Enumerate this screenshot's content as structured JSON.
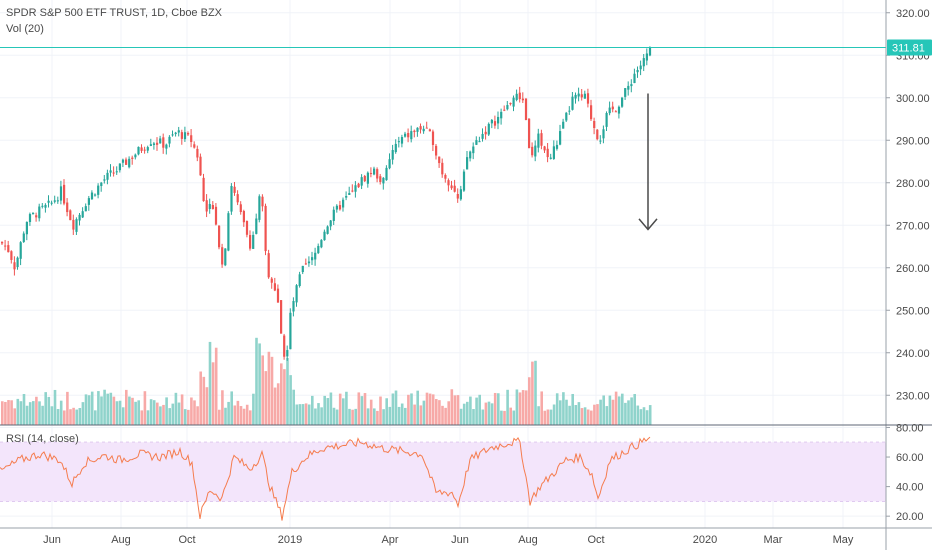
{
  "legend": {
    "symbol": "SPDR S&P 500 ETF TRUST, 1D, Cboe BZX",
    "volume": "Vol (20)",
    "rsi": "RSI (14, close)"
  },
  "colors": {
    "up": "#26a69a",
    "down": "#ef5350",
    "vol_up": "#8fd3cb",
    "vol_down": "#f7a9a7",
    "rsi_line": "#f57c4e",
    "rsi_band": "#f3e5fb",
    "last_price": "#26c6b8",
    "arrow": "#4a4a4a"
  },
  "chart_data": [
    {
      "type": "candlestick",
      "title": "SPDR S&P 500 ETF TRUST, 1D, Cboe BZX",
      "ylim": [
        223,
        323
      ],
      "y_ticks": [
        "230.00",
        "240.00",
        "250.00",
        "260.00",
        "270.00",
        "280.00",
        "290.00",
        "300.00",
        "310.00",
        "320.00"
      ],
      "last_price": "311.81",
      "x_labels": [
        "Jun",
        "Aug",
        "Oct",
        "2019",
        "Apr",
        "Jun",
        "Aug",
        "Oct",
        "2020",
        "Mar",
        "May"
      ],
      "close_anchors": [
        [
          0,
          266
        ],
        [
          8,
          264
        ],
        [
          14,
          260
        ],
        [
          25,
          271
        ],
        [
          36,
          273
        ],
        [
          50,
          275
        ],
        [
          60,
          278
        ],
        [
          72,
          270
        ],
        [
          86,
          276
        ],
        [
          104,
          281
        ],
        [
          116,
          283
        ],
        [
          130,
          286
        ],
        [
          150,
          290
        ],
        [
          164,
          289
        ],
        [
          176,
          292
        ],
        [
          190,
          290
        ],
        [
          197,
          286
        ],
        [
          204,
          273
        ],
        [
          212,
          275
        ],
        [
          222,
          260
        ],
        [
          230,
          280
        ],
        [
          240,
          272
        ],
        [
          250,
          265
        ],
        [
          260,
          278
        ],
        [
          266,
          259
        ],
        [
          276,
          253
        ],
        [
          284,
          237
        ],
        [
          290,
          250
        ],
        [
          300,
          259
        ],
        [
          312,
          262
        ],
        [
          325,
          270
        ],
        [
          340,
          275
        ],
        [
          352,
          278
        ],
        [
          362,
          281
        ],
        [
          372,
          283
        ],
        [
          382,
          280
        ],
        [
          392,
          288
        ],
        [
          400,
          290
        ],
        [
          412,
          292
        ],
        [
          422,
          293
        ],
        [
          432,
          290
        ],
        [
          440,
          283
        ],
        [
          452,
          279
        ],
        [
          458,
          275
        ],
        [
          466,
          286
        ],
        [
          476,
          290
        ],
        [
          487,
          293
        ],
        [
          500,
          296
        ],
        [
          512,
          300
        ],
        [
          522,
          300
        ],
        [
          530,
          285
        ],
        [
          538,
          291
        ],
        [
          548,
          285
        ],
        [
          560,
          292
        ],
        [
          572,
          300
        ],
        [
          584,
          300
        ],
        [
          592,
          294
        ],
        [
          598,
          290
        ],
        [
          606,
          296
        ],
        [
          616,
          298
        ],
        [
          626,
          302
        ],
        [
          634,
          306
        ],
        [
          644,
          309
        ],
        [
          650,
          312
        ]
      ]
    },
    {
      "type": "bar",
      "title": "Vol (20)"
    },
    {
      "type": "line",
      "title": "RSI (14, close)",
      "ylim": [
        12,
        81
      ],
      "y_ticks": [
        "20.00",
        "40.00",
        "60.00",
        "80.00"
      ],
      "band": [
        30,
        70
      ],
      "anchors": [
        [
          0,
          50
        ],
        [
          20,
          58
        ],
        [
          40,
          62
        ],
        [
          60,
          58
        ],
        [
          72,
          42
        ],
        [
          84,
          56
        ],
        [
          104,
          61
        ],
        [
          120,
          58
        ],
        [
          140,
          62
        ],
        [
          160,
          60
        ],
        [
          180,
          64
        ],
        [
          192,
          56
        ],
        [
          200,
          20
        ],
        [
          210,
          38
        ],
        [
          222,
          32
        ],
        [
          234,
          60
        ],
        [
          250,
          52
        ],
        [
          262,
          62
        ],
        [
          270,
          40
        ],
        [
          282,
          20
        ],
        [
          292,
          50
        ],
        [
          306,
          60
        ],
        [
          322,
          66
        ],
        [
          342,
          68
        ],
        [
          362,
          70
        ],
        [
          382,
          66
        ],
        [
          402,
          64
        ],
        [
          422,
          62
        ],
        [
          436,
          36
        ],
        [
          452,
          36
        ],
        [
          458,
          28
        ],
        [
          470,
          58
        ],
        [
          490,
          66
        ],
        [
          510,
          70
        ],
        [
          520,
          70
        ],
        [
          530,
          30
        ],
        [
          540,
          40
        ],
        [
          552,
          48
        ],
        [
          566,
          58
        ],
        [
          580,
          60
        ],
        [
          592,
          48
        ],
        [
          598,
          32
        ],
        [
          610,
          58
        ],
        [
          630,
          66
        ],
        [
          650,
          73
        ]
      ]
    }
  ]
}
